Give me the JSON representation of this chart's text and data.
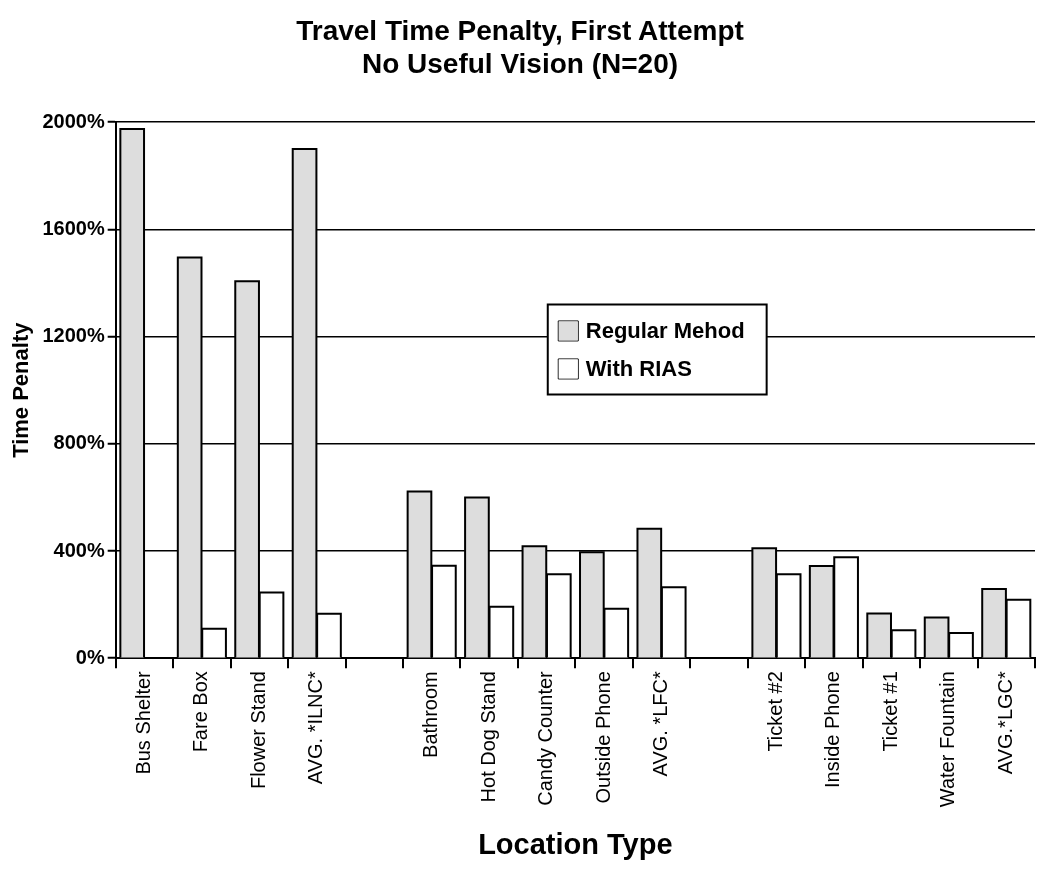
{
  "chart_data": {
    "type": "bar",
    "title": [
      "Travel Time Penalty, First Attempt",
      "No Useful Vision (N=20)"
    ],
    "xlabel": "Location Type",
    "ylabel": "Time Penalty",
    "categories": [
      "Bus Shelter",
      "Fare Box",
      "Flower Stand",
      "AVG. *ILNC*",
      null,
      "Bathroom",
      "Hot Dog Stand",
      "Candy Counter",
      "Outside Phone",
      "AVG. *LFC*",
      null,
      "Ticket #2",
      "Inside Phone",
      "Ticket #1",
      "Water Fountain",
      "AVG.*LGC*"
    ],
    "series": [
      {
        "name": "Regular Mehod",
        "color": "#dddddd",
        "values": [
          1975,
          1495,
          1407,
          1900,
          null,
          622,
          600,
          418,
          395,
          483,
          null,
          410,
          344,
          167,
          152,
          258
        ]
      },
      {
        "name": "With RIAS",
        "color": "#ffffff",
        "values": [
          null,
          110,
          245,
          166,
          null,
          345,
          192,
          313,
          185,
          265,
          null,
          313,
          377,
          104,
          94,
          218
        ]
      }
    ],
    "ylim": [
      0,
      2000
    ],
    "yticks": [
      {
        "value": 0,
        "label": "0%"
      },
      {
        "value": 400,
        "label": "400%"
      },
      {
        "value": 800,
        "label": "800%"
      },
      {
        "value": 1200,
        "label": "1200%"
      },
      {
        "value": 1600,
        "label": "1600%"
      },
      {
        "value": 2000,
        "label": "2000%"
      }
    ],
    "grid": "y",
    "legend": "center"
  }
}
